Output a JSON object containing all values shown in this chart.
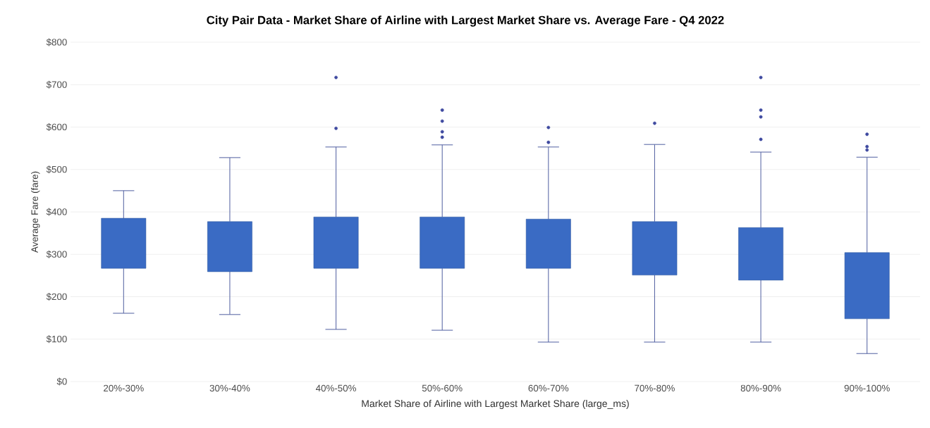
{
  "chart_data": {
    "type": "box",
    "title": "City Pair Data - Market Share of Airline with Largest Market Share vs. Average Fare - Q4 2022",
    "xlabel": "Market Share of Airline with Largest Market Share (large_ms)",
    "ylabel": "Average Fare (fare)",
    "categories": [
      "20%-30%",
      "30%-40%",
      "40%-50%",
      "50%-60%",
      "60%-70%",
      "70%-80%",
      "80%-90%",
      "90%-100%"
    ],
    "color": "#3a6bc4",
    "boxes": [
      {
        "low": 161,
        "q1": 267,
        "median": null,
        "q3": 385,
        "high": 450
      },
      {
        "low": 158,
        "q1": 259,
        "median": null,
        "q3": 377,
        "high": 528
      },
      {
        "low": 123,
        "q1": 267,
        "median": null,
        "q3": 388,
        "high": 553,
        "outliers": [
          717,
          597
        ]
      },
      {
        "low": 121,
        "q1": 267,
        "median": null,
        "q3": 388,
        "high": 558,
        "outliers": [
          640,
          614,
          589,
          576
        ]
      },
      {
        "low": 93,
        "q1": 267,
        "median": null,
        "q3": 383,
        "high": 553,
        "outliers": [
          599,
          564
        ]
      },
      {
        "low": 93,
        "q1": 251,
        "median": null,
        "q3": 377,
        "high": 559,
        "outliers": [
          609
        ]
      },
      {
        "low": 93,
        "q1": 239,
        "median": null,
        "q3": 363,
        "high": 541,
        "outliers": [
          717,
          640,
          624,
          571
        ]
      },
      {
        "low": 66,
        "q1": 148,
        "median": null,
        "q3": 304,
        "high": 529,
        "outliers": [
          583,
          554,
          546
        ]
      }
    ],
    "ylim": [
      0,
      800
    ],
    "yticks": [
      {
        "value": 0,
        "label": "$0"
      },
      {
        "value": 100,
        "label": "$100"
      },
      {
        "value": 200,
        "label": "$200"
      },
      {
        "value": 300,
        "label": "$300"
      },
      {
        "value": 400,
        "label": "$400"
      },
      {
        "value": 500,
        "label": "$500"
      },
      {
        "value": 600,
        "label": "$600"
      },
      {
        "value": 700,
        "label": "$700"
      },
      {
        "value": 800,
        "label": "$800"
      }
    ],
    "grid": "y"
  }
}
